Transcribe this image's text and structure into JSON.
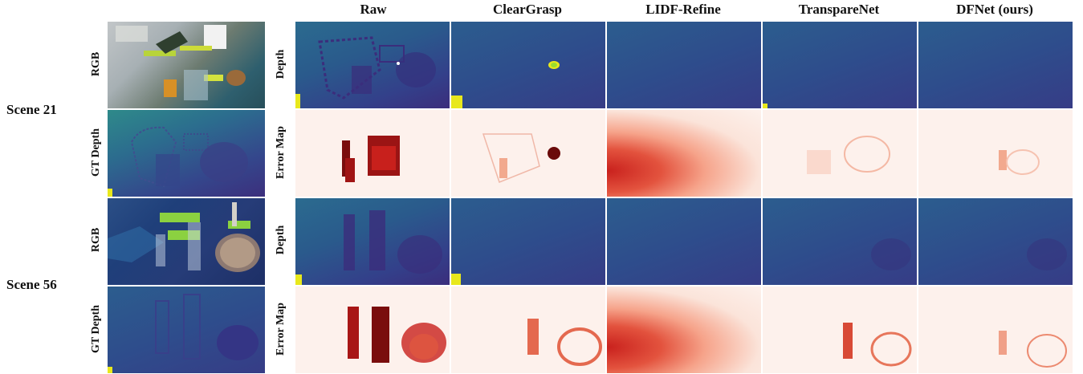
{
  "columns": [
    "Raw",
    "ClearGrasp",
    "LIDF-Refine",
    "TranspareNet",
    "DFNet (ours)"
  ],
  "scenes": [
    {
      "label": "Scene 21",
      "left_rows": [
        "RGB",
        "GT Depth"
      ],
      "right_rows": [
        "Depth",
        "Error Map"
      ]
    },
    {
      "label": "Scene 56",
      "left_rows": [
        "RGB",
        "GT Depth"
      ],
      "right_rows": [
        "Depth",
        "Error Map"
      ]
    }
  ],
  "colors": {
    "depth_dark": "#3b2d7c",
    "depth_teal": "#2e8a8a",
    "error_red": "#c9211d",
    "error_bg": "#fdf1ec",
    "highlight_yellow": "#e8e81c"
  }
}
